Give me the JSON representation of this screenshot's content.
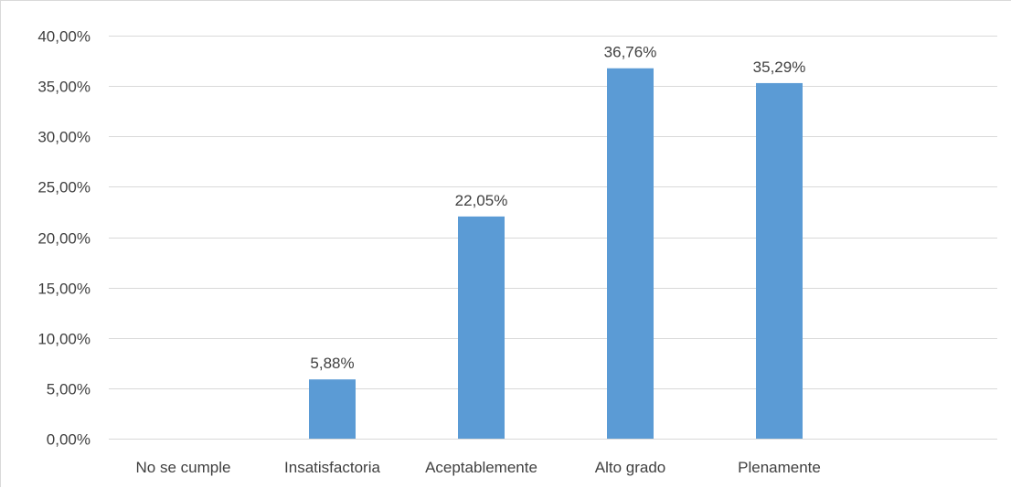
{
  "chart_data": {
    "type": "bar",
    "categories": [
      "No se cumple",
      "Insatisfactoria",
      "Aceptablemente",
      "Alto grado",
      "Plenamente"
    ],
    "values": [
      0,
      5.88,
      22.05,
      36.76,
      35.29
    ],
    "data_labels": [
      "",
      "5,88%",
      "22,05%",
      "36,76%",
      "35,29%"
    ],
    "y_ticks": [
      0,
      5,
      10,
      15,
      20,
      25,
      30,
      35,
      40
    ],
    "y_tick_labels": [
      "0,00%",
      "5,00%",
      "10,00%",
      "15,00%",
      "20,00%",
      "25,00%",
      "30,00%",
      "35,00%",
      "40,00%"
    ],
    "ylim": [
      0,
      40
    ],
    "grid": true,
    "legend": "none",
    "bar_color": "#5b9bd5",
    "grid_color": "#d9d9d9",
    "text_color": "#404040"
  }
}
